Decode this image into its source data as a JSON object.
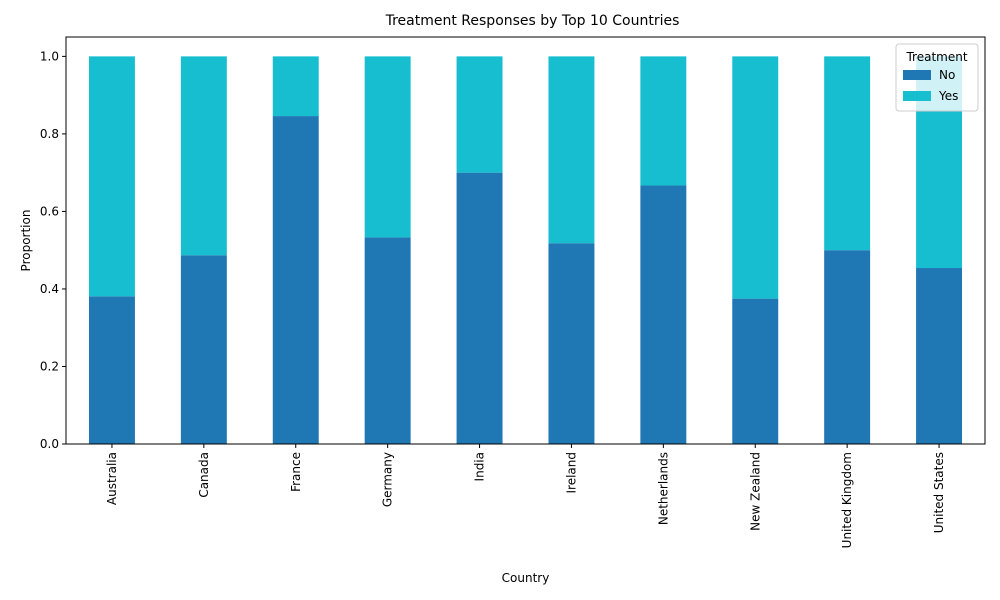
{
  "chart_data": {
    "type": "bar",
    "stacked": true,
    "title": "Treatment Responses by Top 10 Countries",
    "xlabel": "Country",
    "ylabel": "Proportion",
    "ylim": [
      0,
      1.05
    ],
    "yticks": [
      "0.0",
      "0.2",
      "0.4",
      "0.6",
      "0.8",
      "1.0"
    ],
    "categories": [
      "Australia",
      "Canada",
      "France",
      "Germany",
      "India",
      "Ireland",
      "Netherlands",
      "New Zealand",
      "United Kingdom",
      "United States"
    ],
    "legend_title": "Treatment",
    "legend_position": "top-right",
    "grid": false,
    "series": [
      {
        "name": "No",
        "color": "#1f77b4",
        "values": [
          0.381,
          0.487,
          0.846,
          0.533,
          0.7,
          0.518,
          0.667,
          0.375,
          0.5,
          0.454
        ]
      },
      {
        "name": "Yes",
        "color": "#17becf",
        "values": [
          0.619,
          0.513,
          0.154,
          0.467,
          0.3,
          0.482,
          0.333,
          0.625,
          0.5,
          0.546
        ]
      }
    ]
  }
}
